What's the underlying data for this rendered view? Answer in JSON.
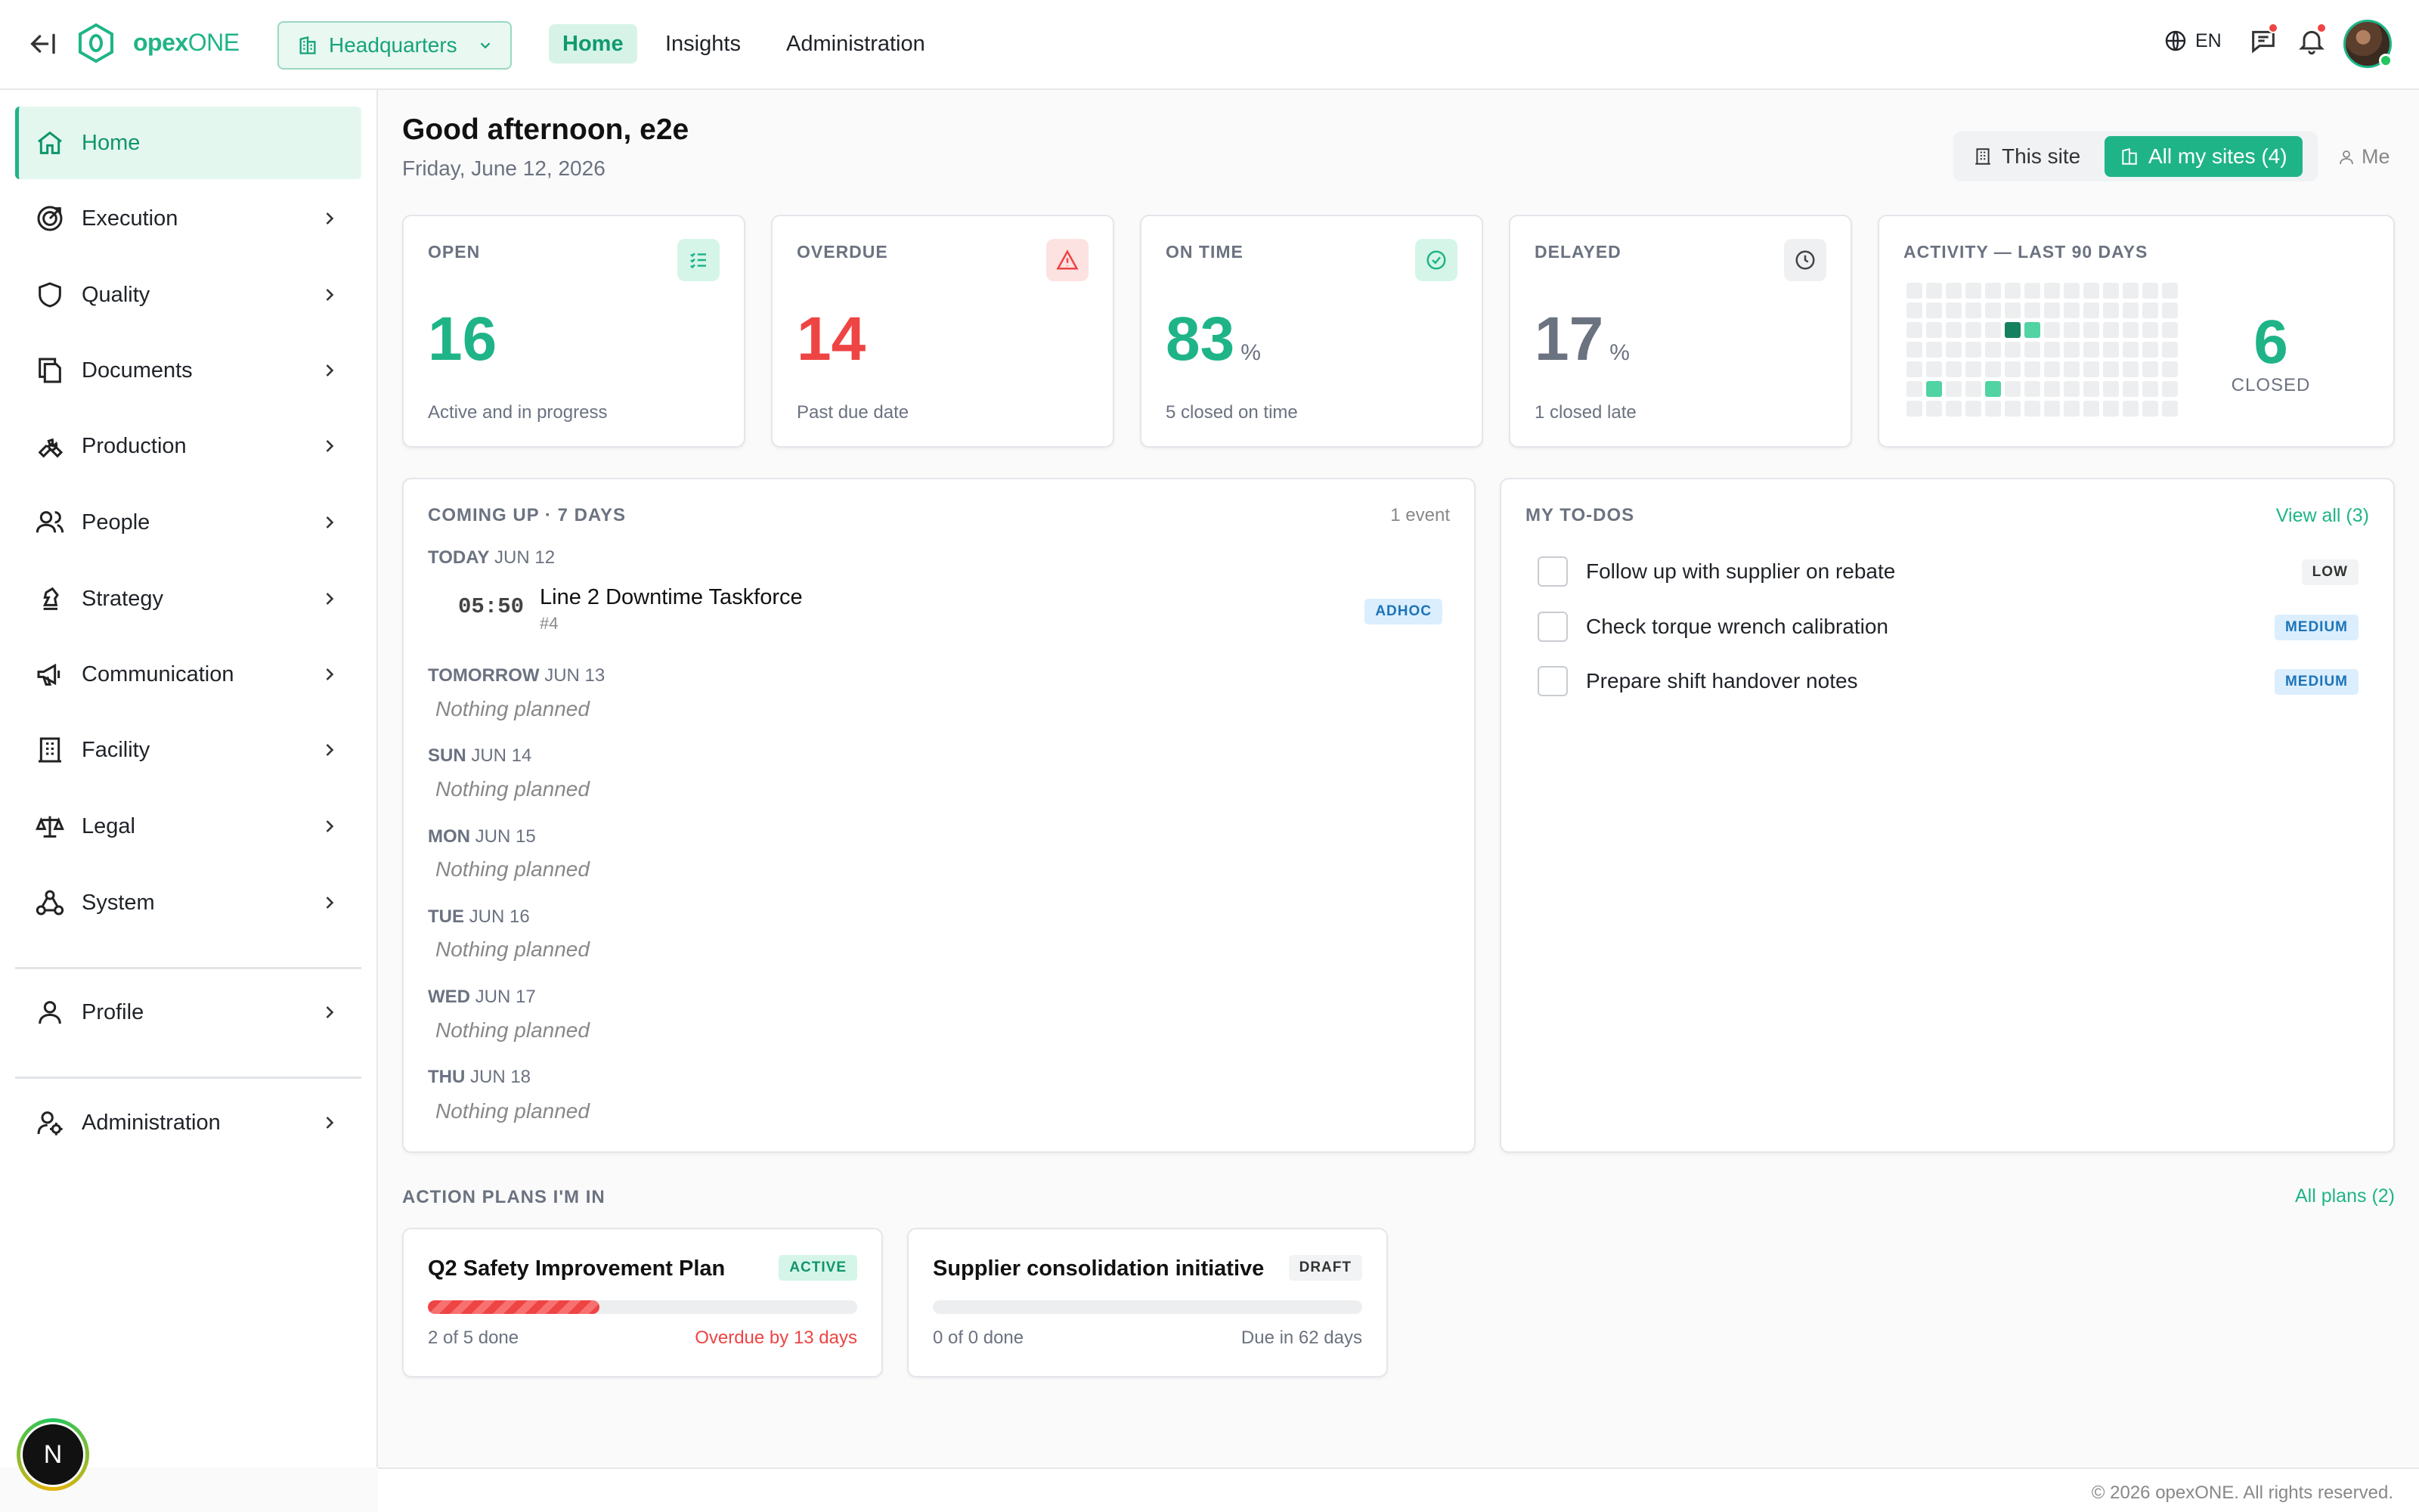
{
  "app": {
    "logo_prefix": "opex",
    "logo_suffix": "ONE",
    "site": "Headquarters"
  },
  "topnav": [
    {
      "label": "Home"
    },
    {
      "label": "Insights"
    },
    {
      "label": "Administration"
    }
  ],
  "language": "EN",
  "sidebar": {
    "items": [
      {
        "label": "Home"
      },
      {
        "label": "Execution"
      },
      {
        "label": "Quality"
      },
      {
        "label": "Documents"
      },
      {
        "label": "Production"
      },
      {
        "label": "People"
      },
      {
        "label": "Strategy"
      },
      {
        "label": "Communication"
      },
      {
        "label": "Facility"
      },
      {
        "label": "Legal"
      },
      {
        "label": "System"
      },
      {
        "label": "Profile"
      },
      {
        "label": "Administration"
      }
    ],
    "badge": "N"
  },
  "header": {
    "greeting": "Good afternoon, e2e",
    "date": "Friday, June 12, 2026",
    "scope": {
      "this_site": "This site",
      "all_sites": "All my sites (4)",
      "me": "Me"
    }
  },
  "stats": {
    "open": {
      "label": "OPEN",
      "value": "16",
      "sub": "Active and in progress",
      "color": "#1fb487"
    },
    "overdue": {
      "label": "OVERDUE",
      "value": "14",
      "sub": "Past due date",
      "color": "#ef4444"
    },
    "on_time": {
      "label": "ON TIME",
      "value": "83",
      "unit": "%",
      "sub": "5 closed on time",
      "color": "#1fb487"
    },
    "delayed": {
      "label": "DELAYED",
      "value": "17",
      "unit": "%",
      "sub": "1 closed late",
      "color": "#6b7280"
    },
    "activity": {
      "label": "ACTIVITY — LAST 90 DAYS",
      "closed_value": "6",
      "closed_label": "CLOSED"
    }
  },
  "coming_up": {
    "title": "COMING UP · 7 DAYS",
    "count": "1 event",
    "days": [
      {
        "day": "TODAY",
        "date": "JUN 12"
      },
      {
        "day": "TOMORROW",
        "date": "JUN 13",
        "note": "Nothing planned"
      },
      {
        "day": "SUN",
        "date": "JUN 14",
        "note": "Nothing planned"
      },
      {
        "day": "MON",
        "date": "JUN 15",
        "note": "Nothing planned"
      },
      {
        "day": "TUE",
        "date": "JUN 16",
        "note": "Nothing planned"
      },
      {
        "day": "WED",
        "date": "JUN 17",
        "note": "Nothing planned"
      },
      {
        "day": "THU",
        "date": "JUN 18",
        "note": "Nothing planned"
      }
    ],
    "event": {
      "time": "05:50",
      "title": "Line 2 Downtime Taskforce",
      "number": "#4",
      "tag": "ADHOC"
    }
  },
  "todos": {
    "title": "MY TO-DOS",
    "view_all": "View all (3)",
    "items": [
      {
        "text": "Follow up with supplier on rebate",
        "priority": "LOW"
      },
      {
        "text": "Check torque wrench calibration",
        "priority": "MEDIUM"
      },
      {
        "text": "Prepare shift handover notes",
        "priority": "MEDIUM"
      }
    ]
  },
  "action_plans": {
    "title": "ACTION PLANS I'M IN",
    "all_plans": "All plans (2)",
    "plans": [
      {
        "title": "Q2 Safety Improvement Plan",
        "status": "ACTIVE",
        "progress_text": "2 of 5 done",
        "progress": 0.4,
        "due": "Overdue by 13 days",
        "due_color": "#ef4444"
      },
      {
        "title": "Supplier consolidation initiative",
        "status": "DRAFT",
        "progress_text": "0 of 0 done",
        "progress": 0,
        "due": "Due in 62 days",
        "due_color": "#6b7280"
      }
    ]
  },
  "footer": "© 2026 opexONE. All rights reserved."
}
